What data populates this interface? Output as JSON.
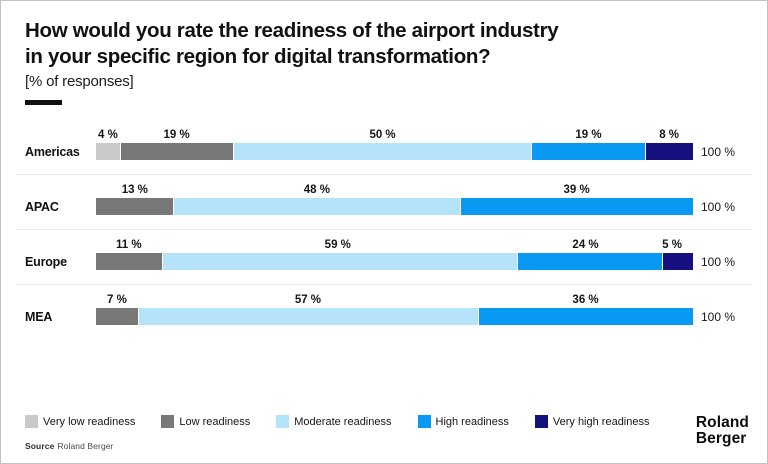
{
  "header": {
    "title_line1": "How would you rate the readiness of the airport industry",
    "title_line2": "in your specific region for digital transformation?",
    "subtitle": "[% of responses]"
  },
  "chart_data": {
    "type": "bar",
    "orientation": "horizontal-stacked",
    "title": "How would you rate the readiness of the airport industry in your specific region for digital transformation?",
    "subtitle": "[% of responses]",
    "unit": "%",
    "xlim": [
      0,
      100
    ],
    "grid": false,
    "legend_position": "bottom",
    "categories": [
      "Americas",
      "APAC",
      "Europe",
      "MEA"
    ],
    "series": [
      {
        "name": "Very low readiness",
        "color": "#c9c9c9",
        "values": [
          4,
          0,
          0,
          0
        ]
      },
      {
        "name": "Low readiness",
        "color": "#787878",
        "values": [
          19,
          13,
          11,
          7
        ]
      },
      {
        "name": "Moderate readiness",
        "color": "#b5e3fa",
        "values": [
          50,
          48,
          59,
          57
        ]
      },
      {
        "name": "High readiness",
        "color": "#0a99f2",
        "values": [
          19,
          39,
          24,
          36
        ]
      },
      {
        "name": "Very high readiness",
        "color": "#14117e",
        "values": [
          8,
          0,
          5,
          0
        ]
      }
    ],
    "value_suffix": " %",
    "row_total_label": "100 %"
  },
  "footer": {
    "source_label": "Source",
    "source_value": "Roland Berger",
    "logo_line1": "Roland",
    "logo_line2": "Berger"
  }
}
